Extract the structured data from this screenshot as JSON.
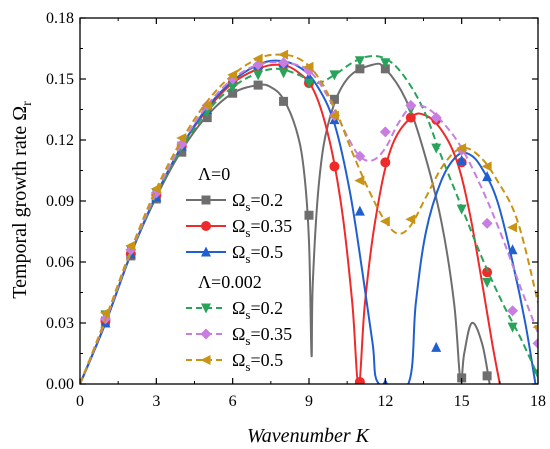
{
  "chart_data": {
    "type": "line",
    "xlabel": "Wavenumber K",
    "ylabel_main": "Temporal growth rate Ω",
    "ylabel_sub": "r",
    "xlim": [
      0,
      18
    ],
    "ylim": [
      0,
      0.18
    ],
    "x_ticks": [
      "0",
      "3",
      "6",
      "9",
      "12",
      "15",
      "18"
    ],
    "y_ticks": [
      "0.00",
      "0.03",
      "0.06",
      "0.09",
      "0.12",
      "0.15",
      "0.18"
    ],
    "grid": false,
    "legend_placement": "center-left",
    "legend_groups": [
      {
        "title": "Λ=0",
        "series_index": [
          0,
          1,
          2
        ]
      },
      {
        "title": "Λ=0.002",
        "series_index": [
          3,
          4,
          5
        ]
      }
    ],
    "series": [
      {
        "name": "Ωs=0.2",
        "legend_main": "Ω",
        "legend_sub": "s",
        "legend_value": "=0.2",
        "color": "#6e6e6e",
        "dash": "solid",
        "marker": "square",
        "curve": [
          [
            0,
            0
          ],
          [
            1,
            0.03
          ],
          [
            2,
            0.064
          ],
          [
            3,
            0.092
          ],
          [
            4,
            0.115
          ],
          [
            5,
            0.132
          ],
          [
            6,
            0.143
          ],
          [
            7,
            0.147
          ],
          [
            7.5,
            0.146
          ],
          [
            8,
            0.14
          ],
          [
            8.5,
            0.125
          ],
          [
            8.8,
            0.105
          ],
          [
            9.0,
            0.07
          ],
          [
            9.1,
            0.014
          ],
          [
            9.15,
            0.05
          ],
          [
            9.4,
            0.1
          ],
          [
            9.8,
            0.13
          ],
          [
            10.5,
            0.15
          ],
          [
            11.5,
            0.157
          ],
          [
            12,
            0.155
          ],
          [
            12.8,
            0.14
          ],
          [
            13.5,
            0.115
          ],
          [
            14.2,
            0.08
          ],
          [
            14.7,
            0.04
          ],
          [
            14.95,
            0.002
          ],
          [
            15.1,
            0.015
          ],
          [
            15.4,
            0.03
          ],
          [
            15.8,
            0.02
          ],
          [
            16.1,
            0.0
          ]
        ],
        "markers": [
          [
            1,
            0.031
          ],
          [
            2,
            0.063
          ],
          [
            3,
            0.091
          ],
          [
            4,
            0.114
          ],
          [
            5,
            0.131
          ],
          [
            6,
            0.143
          ],
          [
            7,
            0.147
          ],
          [
            8,
            0.139
          ],
          [
            9,
            0.083
          ],
          [
            10,
            0.14
          ],
          [
            11,
            0.155
          ],
          [
            12,
            0.155
          ],
          [
            15,
            0.003
          ],
          [
            16,
            0.004
          ]
        ]
      },
      {
        "name": "Ωs=0.35",
        "legend_main": "Ω",
        "legend_sub": "s",
        "legend_value": "=0.35",
        "color": "#ee2a2a",
        "dash": "solid",
        "marker": "circle",
        "curve": [
          [
            0,
            0
          ],
          [
            1,
            0.03
          ],
          [
            2,
            0.064
          ],
          [
            3,
            0.093
          ],
          [
            4,
            0.117
          ],
          [
            5,
            0.135
          ],
          [
            6,
            0.148
          ],
          [
            7,
            0.155
          ],
          [
            7.8,
            0.157
          ],
          [
            8.5,
            0.154
          ],
          [
            9.2,
            0.144
          ],
          [
            9.8,
            0.12
          ],
          [
            10.3,
            0.085
          ],
          [
            10.7,
            0.04
          ],
          [
            10.95,
            0.0
          ],
          [
            11.2,
            0.04
          ],
          [
            11.6,
            0.08
          ],
          [
            12.2,
            0.115
          ],
          [
            13.0,
            0.131
          ],
          [
            13.6,
            0.132
          ],
          [
            14.2,
            0.125
          ],
          [
            14.8,
            0.11
          ],
          [
            15.3,
            0.085
          ],
          [
            15.8,
            0.05
          ],
          [
            16.2,
            0.02
          ],
          [
            16.5,
            0.0
          ]
        ],
        "markers": [
          [
            1,
            0.031
          ],
          [
            2,
            0.064
          ],
          [
            3,
            0.093
          ],
          [
            4,
            0.117
          ],
          [
            5,
            0.135
          ],
          [
            6,
            0.148
          ],
          [
            7,
            0.156
          ],
          [
            8,
            0.157
          ],
          [
            9,
            0.148
          ],
          [
            10,
            0.107
          ],
          [
            11,
            0.001
          ],
          [
            12,
            0.109
          ],
          [
            13,
            0.131
          ],
          [
            14,
            0.13
          ],
          [
            15,
            0.109
          ],
          [
            16,
            0.055
          ]
        ]
      },
      {
        "name": "Ωs=0.5",
        "legend_main": "Ω",
        "legend_sub": "s",
        "legend_value": "=0.5",
        "color": "#1f5fcf",
        "dash": "solid",
        "marker": "triangle-up",
        "curve": [
          [
            0,
            0
          ],
          [
            1,
            0.03
          ],
          [
            2,
            0.064
          ],
          [
            3,
            0.093
          ],
          [
            4,
            0.117
          ],
          [
            5,
            0.136
          ],
          [
            6,
            0.149
          ],
          [
            7,
            0.157
          ],
          [
            7.8,
            0.159
          ],
          [
            8.6,
            0.156
          ],
          [
            9.3,
            0.147
          ],
          [
            10,
            0.128
          ],
          [
            10.6,
            0.095
          ],
          [
            11.1,
            0.055
          ],
          [
            11.5,
            0.02
          ],
          [
            11.75,
            0.0
          ],
          [
            12.9,
            0.0
          ],
          [
            13.2,
            0.04
          ],
          [
            13.6,
            0.075
          ],
          [
            14.2,
            0.1
          ],
          [
            14.8,
            0.112
          ],
          [
            15.3,
            0.113
          ],
          [
            15.8,
            0.106
          ],
          [
            16.4,
            0.09
          ],
          [
            17.0,
            0.06
          ],
          [
            17.5,
            0.03
          ],
          [
            17.9,
            0.0
          ]
        ],
        "markers": [
          [
            1,
            0.03
          ],
          [
            2,
            0.064
          ],
          [
            3,
            0.092
          ],
          [
            4,
            0.117
          ],
          [
            5,
            0.135
          ],
          [
            6,
            0.149
          ],
          [
            7,
            0.157
          ],
          [
            8,
            0.158
          ],
          [
            9,
            0.151
          ],
          [
            10,
            0.13
          ],
          [
            11,
            0.085
          ],
          [
            12,
            0.0
          ],
          [
            14,
            0.018
          ],
          [
            15,
            0.11
          ],
          [
            16,
            0.102
          ],
          [
            17,
            0.066
          ]
        ]
      },
      {
        "name": "Ωs=0.2",
        "legend_main": "Ω",
        "legend_sub": "s",
        "legend_value": "=0.2",
        "color": "#27a35a",
        "dash": "dashed",
        "marker": "triangle-down",
        "curve": [
          [
            0,
            0
          ],
          [
            1,
            0.031
          ],
          [
            2,
            0.064
          ],
          [
            3,
            0.093
          ],
          [
            4,
            0.116
          ],
          [
            5,
            0.134
          ],
          [
            6,
            0.146
          ],
          [
            7,
            0.153
          ],
          [
            7.8,
            0.155
          ],
          [
            8.6,
            0.152
          ],
          [
            9.3,
            0.148
          ],
          [
            10,
            0.152
          ],
          [
            10.7,
            0.158
          ],
          [
            11.3,
            0.161
          ],
          [
            12,
            0.16
          ],
          [
            12.7,
            0.152
          ],
          [
            13.5,
            0.135
          ],
          [
            14.2,
            0.112
          ],
          [
            15,
            0.087
          ],
          [
            15.8,
            0.062
          ],
          [
            16.6,
            0.04
          ],
          [
            17.3,
            0.023
          ],
          [
            18,
            0.004
          ]
        ],
        "markers": [
          [
            1,
            0.034
          ],
          [
            2,
            0.066
          ],
          [
            3,
            0.094
          ],
          [
            4,
            0.117
          ],
          [
            5,
            0.134
          ],
          [
            6,
            0.146
          ],
          [
            7,
            0.152
          ],
          [
            8,
            0.153
          ],
          [
            9,
            0.148
          ],
          [
            10,
            0.152
          ],
          [
            11,
            0.159
          ],
          [
            12,
            0.158
          ],
          [
            13,
            0.135
          ],
          [
            14,
            0.116
          ],
          [
            15,
            0.086
          ],
          [
            16,
            0.05
          ],
          [
            17,
            0.028
          ],
          [
            18,
            0.005
          ]
        ]
      },
      {
        "name": "Ωs=0.35",
        "legend_main": "Ω",
        "legend_sub": "s",
        "legend_value": "=0.35",
        "color": "#c77ee0",
        "dash": "dashed",
        "marker": "diamond",
        "curve": [
          [
            0,
            0
          ],
          [
            1,
            0.031
          ],
          [
            2,
            0.065
          ],
          [
            3,
            0.094
          ],
          [
            4,
            0.118
          ],
          [
            5,
            0.137
          ],
          [
            6,
            0.15
          ],
          [
            7,
            0.157
          ],
          [
            8,
            0.158
          ],
          [
            9,
            0.154
          ],
          [
            9.8,
            0.14
          ],
          [
            10.5,
            0.122
          ],
          [
            11,
            0.112
          ],
          [
            11.5,
            0.11
          ],
          [
            12,
            0.116
          ],
          [
            12.5,
            0.128
          ],
          [
            13,
            0.136
          ],
          [
            13.6,
            0.136
          ],
          [
            14.3,
            0.128
          ],
          [
            15,
            0.116
          ],
          [
            15.8,
            0.096
          ],
          [
            16.6,
            0.072
          ],
          [
            17.3,
            0.048
          ],
          [
            18,
            0.025
          ]
        ],
        "markers": [
          [
            1,
            0.032
          ],
          [
            2,
            0.066
          ],
          [
            3,
            0.094
          ],
          [
            4,
            0.118
          ],
          [
            5,
            0.137
          ],
          [
            6,
            0.15
          ],
          [
            7,
            0.157
          ],
          [
            8,
            0.158
          ],
          [
            9,
            0.154
          ],
          [
            10,
            0.132
          ],
          [
            11,
            0.112
          ],
          [
            12,
            0.124
          ],
          [
            13,
            0.137
          ],
          [
            14,
            0.131
          ],
          [
            15,
            0.115
          ],
          [
            16,
            0.079
          ],
          [
            17,
            0.036
          ],
          [
            18,
            0.02
          ]
        ]
      },
      {
        "name": "Ωs=0.5",
        "legend_main": "Ω",
        "legend_sub": "s",
        "legend_value": "=0.5",
        "color": "#c99313",
        "dash": "dashed",
        "marker": "triangle-left",
        "curve": [
          [
            0,
            0
          ],
          [
            1,
            0.032
          ],
          [
            2,
            0.066
          ],
          [
            3,
            0.096
          ],
          [
            4,
            0.12
          ],
          [
            5,
            0.139
          ],
          [
            6,
            0.152
          ],
          [
            7,
            0.16
          ],
          [
            7.8,
            0.162
          ],
          [
            8.6,
            0.16
          ],
          [
            9.3,
            0.152
          ],
          [
            10,
            0.136
          ],
          [
            10.7,
            0.114
          ],
          [
            11.4,
            0.094
          ],
          [
            12,
            0.08
          ],
          [
            12.5,
            0.074
          ],
          [
            13,
            0.078
          ],
          [
            13.6,
            0.092
          ],
          [
            14.3,
            0.108
          ],
          [
            15,
            0.116
          ],
          [
            15.7,
            0.112
          ],
          [
            16.4,
            0.1
          ],
          [
            17.2,
            0.08
          ],
          [
            18,
            0.04
          ]
        ],
        "markers": [
          [
            1,
            0.035
          ],
          [
            2,
            0.068
          ],
          [
            3,
            0.096
          ],
          [
            4,
            0.121
          ],
          [
            5,
            0.137
          ],
          [
            6,
            0.152
          ],
          [
            7,
            0.16
          ],
          [
            8,
            0.162
          ],
          [
            9,
            0.156
          ],
          [
            10,
            0.132
          ],
          [
            11,
            0.1
          ],
          [
            12,
            0.08
          ],
          [
            13,
            0.081
          ],
          [
            15,
            0.116
          ],
          [
            16,
            0.107
          ],
          [
            17,
            0.077
          ],
          [
            18,
            0.028
          ]
        ]
      }
    ]
  }
}
